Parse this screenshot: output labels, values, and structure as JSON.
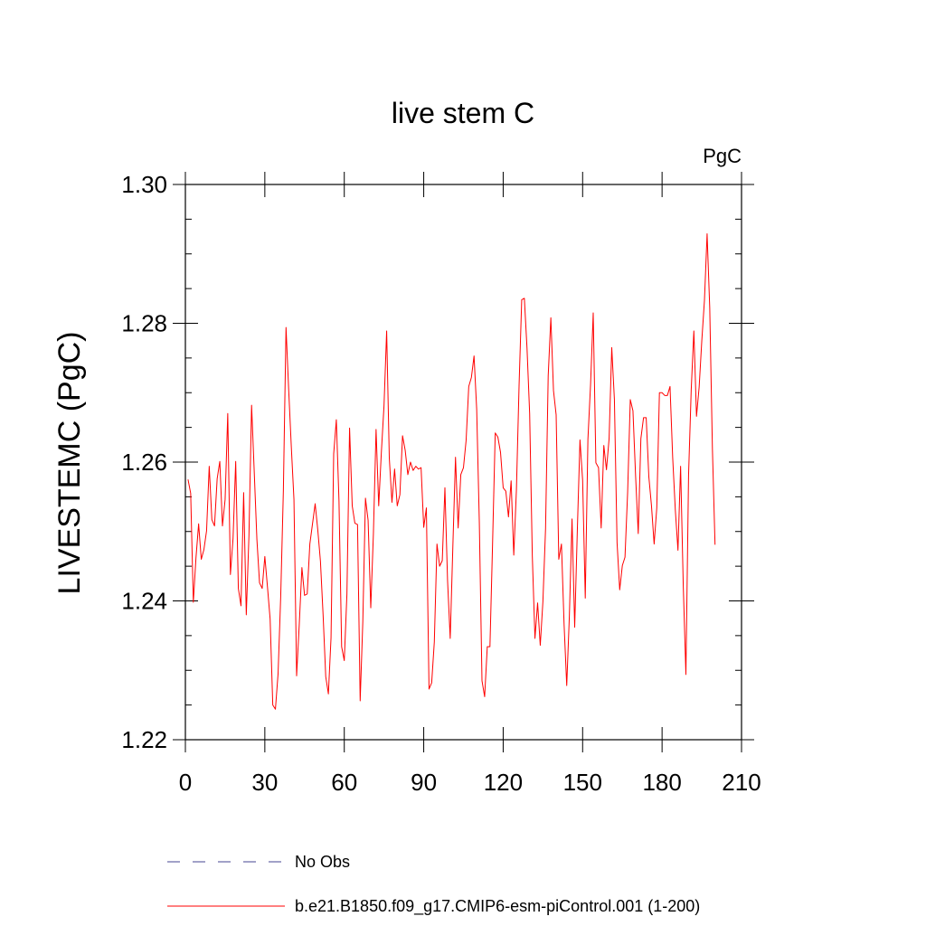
{
  "chart_data": {
    "type": "line",
    "title": "live stem C",
    "units": "PgC",
    "xlabel": "",
    "ylabel": "LIVESTEMC  (PgC)",
    "xlim": [
      0,
      210
    ],
    "ylim": [
      1.22,
      1.3
    ],
    "xticks": [
      0,
      30,
      60,
      90,
      120,
      150,
      180,
      210
    ],
    "xtick_labels": [
      "0",
      "30",
      "60",
      "90",
      "120",
      "150",
      "180",
      "210"
    ],
    "yticks": [
      1.22,
      1.24,
      1.26,
      1.28,
      1.3
    ],
    "ytick_labels": [
      "1.22",
      "1.24",
      "1.26",
      "1.28",
      "1.30"
    ],
    "grid": false,
    "legend_position": "bottom",
    "legend": [
      {
        "label": "No Obs",
        "color": "#6a6aa8",
        "style": "dashed"
      },
      {
        "label": "b.e21.B1850.f09_g17.CMIP6-esm-piControl.001 (1-200)",
        "color": "#ff0000",
        "style": "solid"
      }
    ],
    "series": [
      {
        "name": "b.e21.B1850.f09_g17.CMIP6-esm-piControl.001 (1-200)",
        "color": "#ff0000",
        "x": [
          1,
          2,
          3,
          4,
          5,
          6,
          7,
          8,
          9,
          10,
          11,
          12,
          13,
          14,
          15,
          16,
          17,
          18,
          19,
          20,
          21,
          22,
          23,
          24,
          25,
          26,
          27,
          28,
          29,
          30,
          31,
          32,
          33,
          34,
          35,
          36,
          37,
          38,
          39,
          40,
          41,
          42,
          43,
          44,
          45,
          46,
          47,
          48,
          49,
          50,
          51,
          52,
          53,
          54,
          55,
          56,
          57,
          58,
          59,
          60,
          61,
          62,
          63,
          64,
          65,
          66,
          67,
          68,
          69,
          70,
          71,
          72,
          73,
          74,
          75,
          76,
          77,
          78,
          79,
          80,
          81,
          82,
          83,
          84,
          85,
          86,
          87,
          88,
          89,
          90,
          91,
          92,
          93,
          94,
          95,
          96,
          97,
          98,
          99,
          100,
          101,
          102,
          103,
          104,
          105,
          106,
          107,
          108,
          109,
          110,
          111,
          112,
          113,
          114,
          115,
          116,
          117,
          118,
          119,
          120,
          121,
          122,
          123,
          124,
          125,
          126,
          127,
          128,
          129,
          130,
          131,
          132,
          133,
          134,
          135,
          136,
          137,
          138,
          139,
          140,
          141,
          142,
          143,
          144,
          145,
          146,
          147,
          148,
          149,
          150,
          151,
          152,
          153,
          154,
          155,
          156,
          157,
          158,
          159,
          160,
          161,
          162,
          163,
          164,
          165,
          166,
          167,
          168,
          169,
          170,
          171,
          172,
          173,
          174,
          175,
          176,
          177,
          178,
          179,
          180,
          181,
          182,
          183,
          184,
          185,
          186,
          187,
          188,
          189,
          190,
          191,
          192,
          193,
          194,
          195,
          196,
          197,
          198,
          199,
          200
        ],
        "y": [
          1.2575,
          1.2555,
          1.2398,
          1.2462,
          1.2511,
          1.246,
          1.2474,
          1.2501,
          1.2594,
          1.2517,
          1.2508,
          1.2576,
          1.2601,
          1.2508,
          1.2546,
          1.267,
          1.2438,
          1.249,
          1.2601,
          1.2418,
          1.2393,
          1.2556,
          1.238,
          1.2494,
          1.2682,
          1.2586,
          1.2489,
          1.2426,
          1.2418,
          1.2464,
          1.242,
          1.2374,
          1.225,
          1.2244,
          1.2295,
          1.2407,
          1.2559,
          1.2794,
          1.2705,
          1.2622,
          1.2546,
          1.2292,
          1.2366,
          1.2448,
          1.2408,
          1.241,
          1.2482,
          1.2511,
          1.254,
          1.2502,
          1.2457,
          1.238,
          1.2291,
          1.2266,
          1.2347,
          1.2612,
          1.2661,
          1.2544,
          1.2334,
          1.2314,
          1.241,
          1.2649,
          1.2537,
          1.2512,
          1.251,
          1.2256,
          1.237,
          1.2548,
          1.2516,
          1.239,
          1.2497,
          1.2647,
          1.2537,
          1.2614,
          1.2681,
          1.2789,
          1.2606,
          1.2542,
          1.259,
          1.2537,
          1.2553,
          1.2638,
          1.2617,
          1.2582,
          1.26,
          1.2588,
          1.2594,
          1.259,
          1.2592,
          1.2506,
          1.2534,
          1.2273,
          1.2282,
          1.2341,
          1.2482,
          1.245,
          1.2458,
          1.2563,
          1.2429,
          1.2346,
          1.2479,
          1.2607,
          1.2505,
          1.2582,
          1.2592,
          1.2631,
          1.2709,
          1.2722,
          1.2753,
          1.2676,
          1.2512,
          1.2285,
          1.2262,
          1.2334,
          1.2334,
          1.2483,
          1.2642,
          1.2636,
          1.2614,
          1.2563,
          1.2558,
          1.2521,
          1.2573,
          1.2466,
          1.256,
          1.271,
          1.2834,
          1.2836,
          1.2764,
          1.267,
          1.2465,
          1.2346,
          1.2397,
          1.2336,
          1.2399,
          1.2504,
          1.2724,
          1.2808,
          1.2703,
          1.2668,
          1.246,
          1.2482,
          1.2366,
          1.2278,
          1.2379,
          1.2518,
          1.2362,
          1.2502,
          1.2632,
          1.2574,
          1.2404,
          1.2633,
          1.2712,
          1.2815,
          1.2599,
          1.2592,
          1.2505,
          1.2624,
          1.2589,
          1.2634,
          1.2765,
          1.269,
          1.2484,
          1.2416,
          1.2451,
          1.2463,
          1.2557,
          1.269,
          1.2674,
          1.258,
          1.2497,
          1.2634,
          1.2664,
          1.2664,
          1.2579,
          1.2537,
          1.2482,
          1.2534,
          1.27,
          1.27,
          1.2696,
          1.2696,
          1.2709,
          1.2607,
          1.2531,
          1.2473,
          1.2594,
          1.2422,
          1.2294,
          1.2581,
          1.2704,
          1.2789,
          1.2666,
          1.2708,
          1.2775,
          1.2833,
          1.2929,
          1.2822,
          1.262,
          1.2481
        ]
      }
    ]
  }
}
